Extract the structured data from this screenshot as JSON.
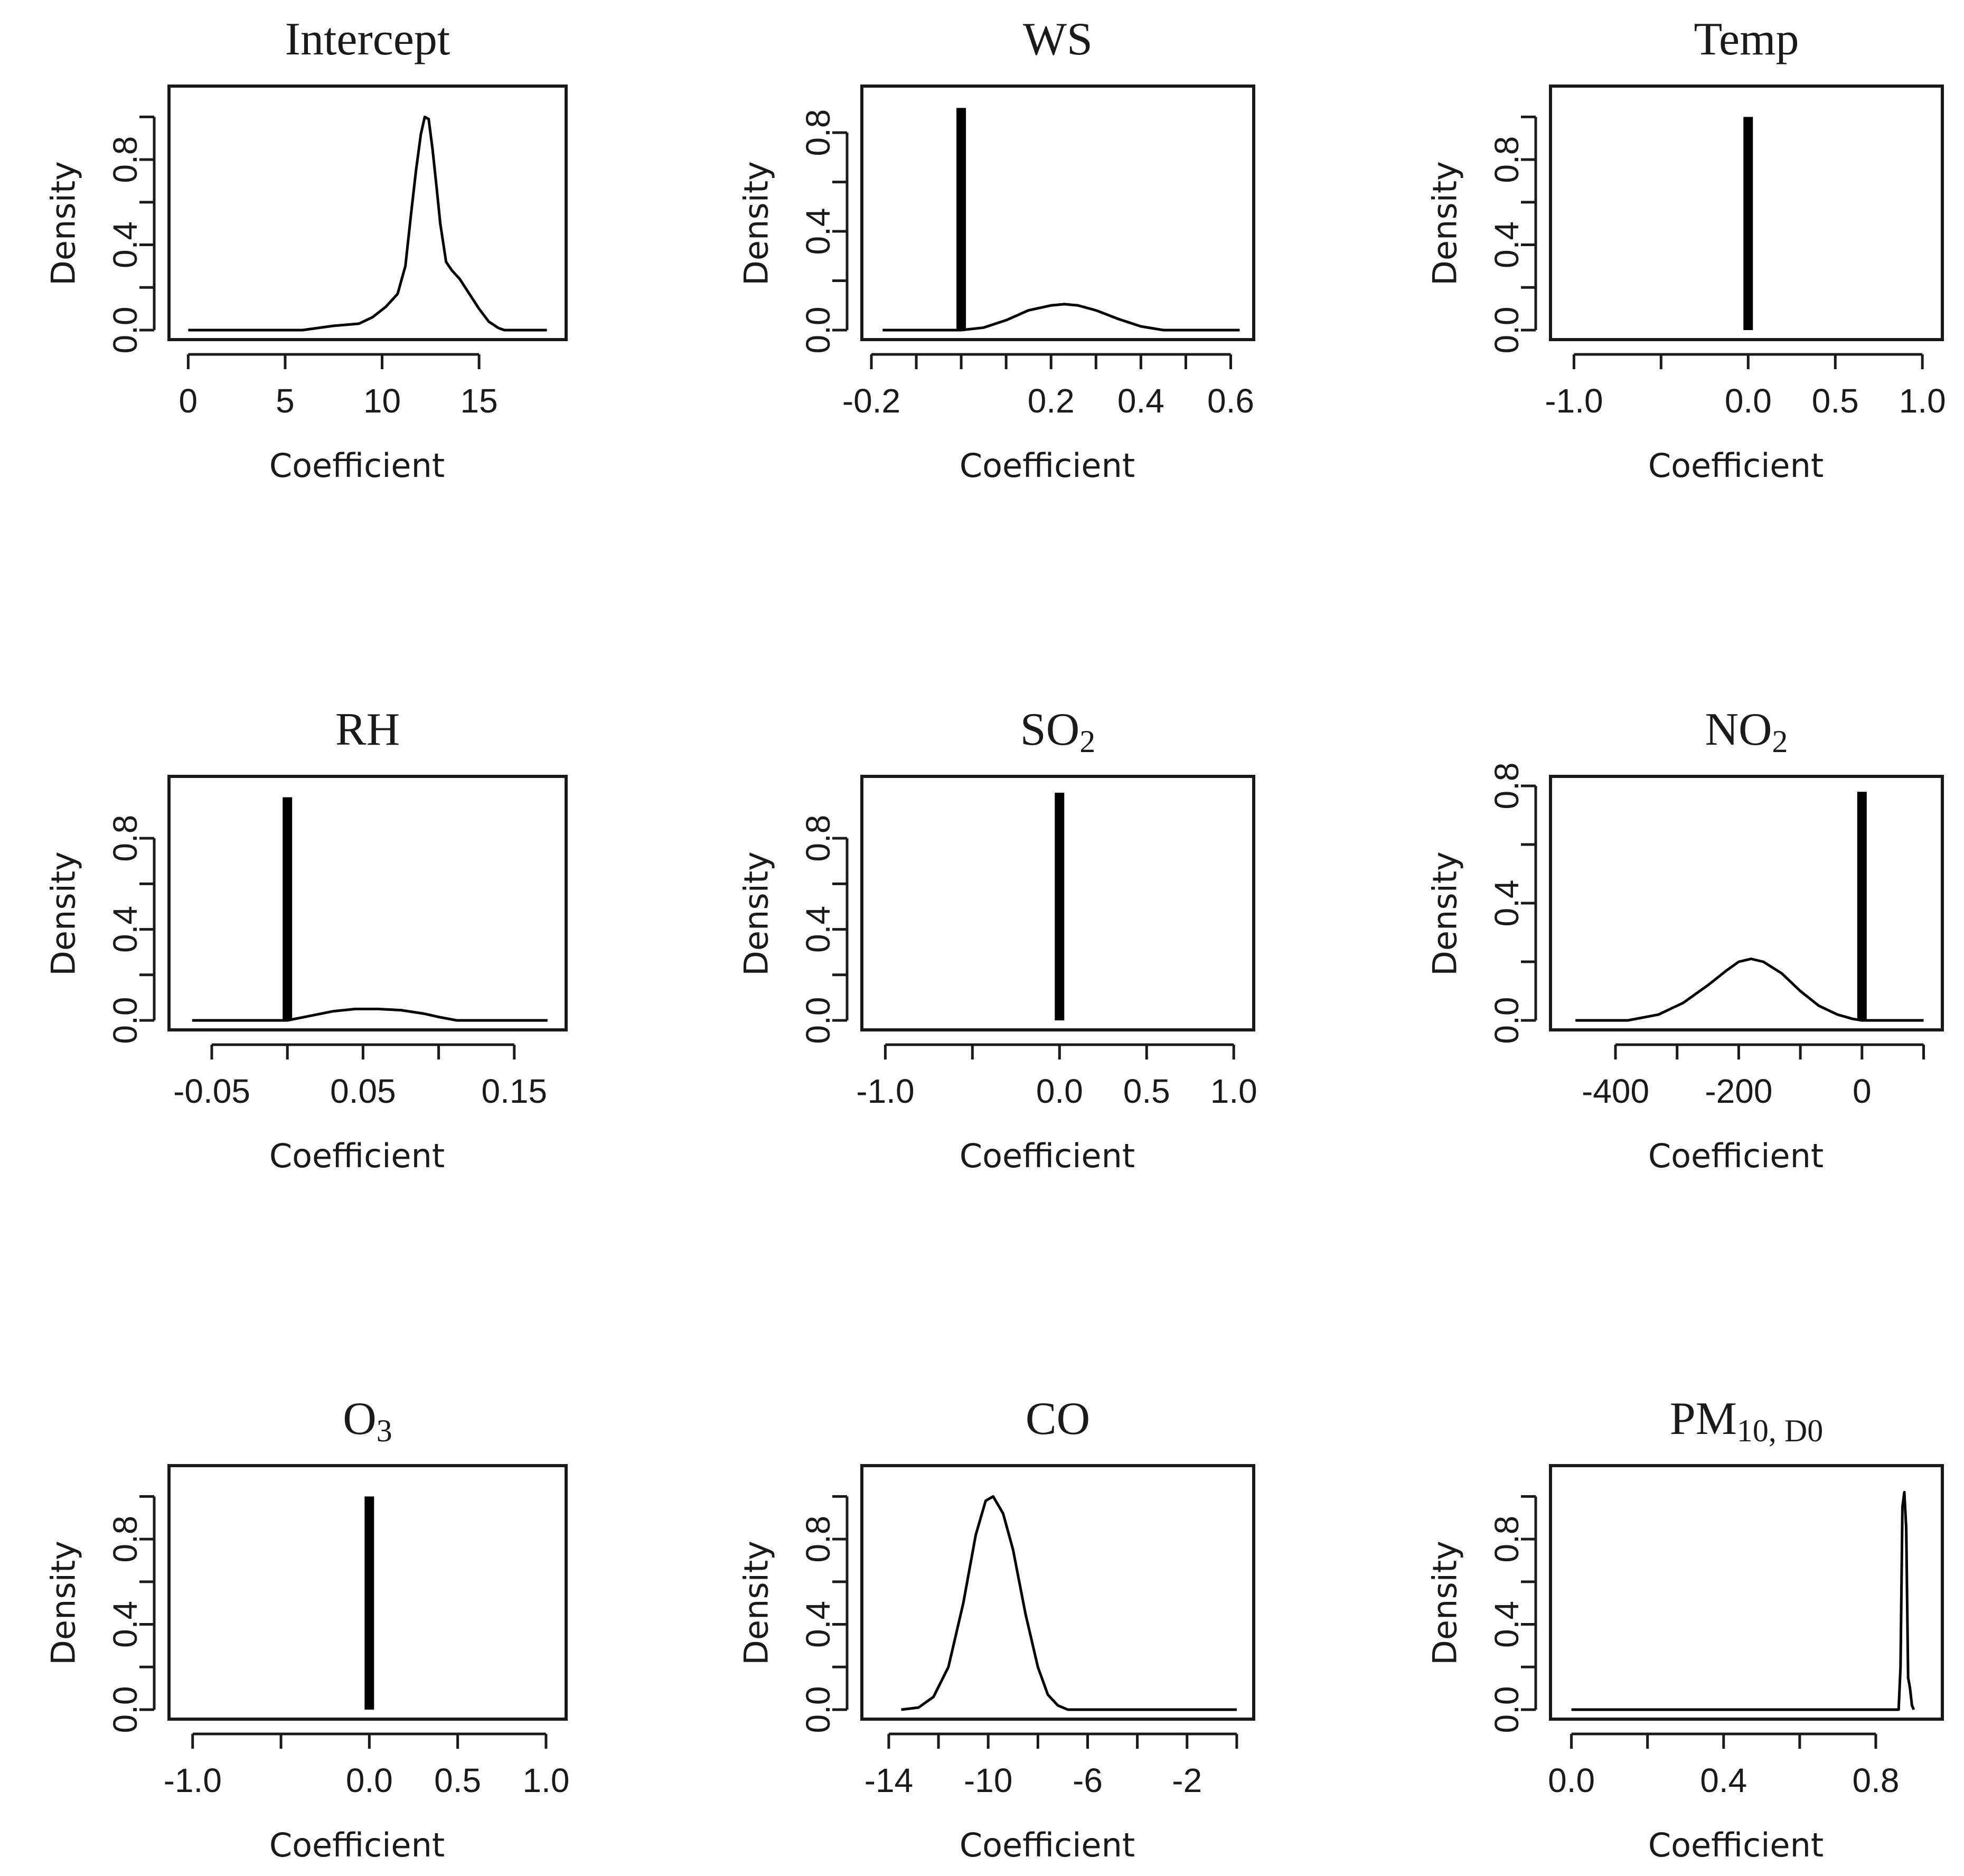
{
  "figure": {
    "xlabel": "Coefficient",
    "ylabel": "Density"
  },
  "chart_data": [
    {
      "type": "line",
      "title": "Intercept",
      "title_sub": "",
      "xlabel": "Coefficient",
      "ylabel": "Density",
      "xlim": [
        -0.5,
        19
      ],
      "ylim": [
        0,
        1.1
      ],
      "xticks": [
        0,
        5,
        10,
        15
      ],
      "xtick_labels": [
        "0",
        "5",
        "10",
        "15"
      ],
      "yticks": [
        0,
        0.2,
        0.4,
        0.6,
        0.8,
        1.0
      ],
      "ytick_labels": [
        "0.0",
        "",
        "0.4",
        "",
        "0.8",
        ""
      ],
      "curve": {
        "x": [
          0,
          5.9,
          7.5,
          8.8,
          9.5,
          10.2,
          10.8,
          11.2,
          11.5,
          11.75,
          12.0,
          12.2,
          12.4,
          12.6,
          12.8,
          13.0,
          13.3,
          13.6,
          14.0,
          14.5,
          15.0,
          15.5,
          16.0,
          16.3,
          18.5
        ],
        "y": [
          0.0,
          0.0,
          0.02,
          0.03,
          0.06,
          0.11,
          0.17,
          0.3,
          0.55,
          0.75,
          0.92,
          1.0,
          0.99,
          0.85,
          0.68,
          0.5,
          0.32,
          0.28,
          0.24,
          0.17,
          0.1,
          0.04,
          0.01,
          0.0,
          0.0
        ]
      },
      "spike": null
    },
    {
      "type": "line",
      "title": "WS",
      "title_sub": "",
      "xlabel": "Coefficient",
      "ylabel": "Density",
      "xlim": [
        -0.2,
        0.63
      ],
      "ylim": [
        0,
        0.95
      ],
      "xticks": [
        -0.2,
        -0.1,
        0.0,
        0.1,
        0.2,
        0.3,
        0.4,
        0.5,
        0.6
      ],
      "xtick_labels": [
        "-0.2",
        "",
        "",
        "",
        "0.2",
        "",
        "0.4",
        "",
        "0.6"
      ],
      "yticks": [
        0,
        0.2,
        0.4,
        0.6,
        0.8
      ],
      "ytick_labels": [
        "0.0",
        "",
        "0.4",
        "",
        "0.8"
      ],
      "curve": {
        "x": [
          -0.175,
          0.0,
          0.05,
          0.1,
          0.15,
          0.2,
          0.23,
          0.26,
          0.3,
          0.35,
          0.4,
          0.45,
          0.62
        ],
        "y": [
          0.0,
          0.0,
          0.01,
          0.04,
          0.08,
          0.1,
          0.105,
          0.1,
          0.08,
          0.045,
          0.015,
          0.0,
          0.0
        ]
      },
      "spike": {
        "x": 0.0,
        "y": 0.9
      }
    },
    {
      "type": "line",
      "title": "Temp",
      "title_sub": "",
      "xlabel": "Coefficient",
      "ylabel": "Density",
      "xlim": [
        -1.08,
        1.06
      ],
      "ylim": [
        0,
        1.1
      ],
      "xticks": [
        -1.0,
        -0.5,
        0.0,
        0.5,
        1.0
      ],
      "xtick_labels": [
        "-1.0",
        "",
        "0.0",
        "0.5",
        "1.0"
      ],
      "yticks": [
        0,
        0.2,
        0.4,
        0.6,
        0.8,
        1.0
      ],
      "ytick_labels": [
        "0.0",
        "",
        "0.4",
        "",
        "0.8",
        ""
      ],
      "curve": null,
      "spike": {
        "x": 0.0,
        "y": 1.0
      }
    },
    {
      "type": "line",
      "title": "RH",
      "title_sub": "",
      "xlabel": "Coefficient",
      "ylabel": "Density",
      "xlim": [
        -0.072,
        0.178
      ],
      "ylim": [
        0,
        1.03
      ],
      "xticks": [
        -0.05,
        0.0,
        0.05,
        0.1,
        0.15
      ],
      "xtick_labels": [
        "-0.05",
        "",
        "0.05",
        "",
        "0.15"
      ],
      "yticks": [
        0,
        0.2,
        0.4,
        0.6,
        0.8
      ],
      "ytick_labels": [
        "0.0",
        "",
        "0.4",
        "",
        "0.8"
      ],
      "curve": {
        "x": [
          -0.063,
          0.0,
          0.015,
          0.03,
          0.045,
          0.06,
          0.075,
          0.09,
          0.1,
          0.112,
          0.172
        ],
        "y": [
          0.0,
          0.0,
          0.02,
          0.04,
          0.05,
          0.05,
          0.045,
          0.03,
          0.015,
          0.0,
          0.0
        ]
      },
      "spike": {
        "x": 0.0,
        "y": 0.98
      }
    },
    {
      "type": "line",
      "title": "SO",
      "title_sub": "2",
      "xlabel": "Coefficient",
      "ylabel": "Density",
      "xlim": [
        -1.08,
        1.06
      ],
      "ylim": [
        0,
        1.03
      ],
      "xticks": [
        -1.0,
        -0.5,
        0.0,
        0.5,
        1.0
      ],
      "xtick_labels": [
        "-1.0",
        "",
        "0.0",
        "0.5",
        "1.0"
      ],
      "yticks": [
        0,
        0.2,
        0.4,
        0.6,
        0.8
      ],
      "ytick_labels": [
        "0.0",
        "",
        "0.4",
        "",
        "0.8"
      ],
      "curve": null,
      "spike": {
        "x": 0.0,
        "y": 1.0
      }
    },
    {
      "type": "line",
      "title": "NO",
      "title_sub": "2",
      "xlabel": "Coefficient",
      "ylabel": "Density",
      "xlim": [
        -490,
        115
      ],
      "ylim": [
        0,
        0.8
      ],
      "xticks": [
        -400,
        -300,
        -200,
        -100,
        0,
        100
      ],
      "xtick_labels": [
        "-400",
        "",
        "-200",
        "",
        "0",
        ""
      ],
      "yticks": [
        0,
        0.2,
        0.4,
        0.6,
        0.8
      ],
      "ytick_labels": [
        "0.0",
        "",
        "0.4",
        "",
        "0.8"
      ],
      "curve": {
        "x": [
          -465,
          -380,
          -330,
          -290,
          -250,
          -220,
          -200,
          -180,
          -160,
          -130,
          -100,
          -70,
          -40,
          -15,
          0,
          100
        ],
        "y": [
          0.0,
          0.0,
          0.02,
          0.06,
          0.12,
          0.17,
          0.2,
          0.21,
          0.2,
          0.16,
          0.1,
          0.05,
          0.02,
          0.005,
          0.0,
          0.0
        ]
      },
      "spike": {
        "x": 0.0,
        "y": 0.78
      }
    },
    {
      "type": "line",
      "title": "O",
      "title_sub": "3",
      "xlabel": "Coefficient",
      "ylabel": "Density",
      "xlim": [
        -1.08,
        1.06
      ],
      "ylim": [
        0,
        1.1
      ],
      "xticks": [
        -1.0,
        -0.5,
        0.0,
        0.5,
        1.0
      ],
      "xtick_labels": [
        "-1.0",
        "",
        "0.0",
        "0.5",
        "1.0"
      ],
      "yticks": [
        0,
        0.2,
        0.4,
        0.6,
        0.8,
        1.0
      ],
      "ytick_labels": [
        "0.0",
        "",
        "0.4",
        "",
        "0.8",
        ""
      ],
      "curve": null,
      "spike": {
        "x": 0.0,
        "y": 1.0
      }
    },
    {
      "type": "line",
      "title": "CO",
      "title_sub": "",
      "xlabel": "Coefficient",
      "ylabel": "Density",
      "xlim": [
        -14.7,
        0.3
      ],
      "ylim": [
        0,
        1.1
      ],
      "xticks": [
        -14,
        -12,
        -10,
        -8,
        -6,
        -4,
        -2,
        0
      ],
      "xtick_labels": [
        "-14",
        "",
        "-10",
        "",
        "-6",
        "",
        "-2",
        ""
      ],
      "yticks": [
        0,
        0.2,
        0.4,
        0.6,
        0.8,
        1.0
      ],
      "ytick_labels": [
        "0.0",
        "",
        "0.4",
        "",
        "0.8",
        ""
      ],
      "curve": {
        "x": [
          -13.5,
          -12.8,
          -12.2,
          -11.6,
          -11.0,
          -10.5,
          -10.1,
          -9.8,
          -9.4,
          -9.0,
          -8.5,
          -8.0,
          -7.6,
          -7.2,
          -6.8,
          0.0
        ],
        "y": [
          0.0,
          0.01,
          0.06,
          0.2,
          0.5,
          0.82,
          0.98,
          1.0,
          0.92,
          0.75,
          0.45,
          0.2,
          0.07,
          0.02,
          0.0,
          0.0
        ]
      },
      "spike": null
    },
    {
      "type": "line",
      "title": "PM",
      "title_sub": "10, D0",
      "xlabel": "Coefficient",
      "ylabel": "Density",
      "xlim": [
        -0.03,
        0.95
      ],
      "ylim": [
        0,
        1.1
      ],
      "xticks": [
        0.0,
        0.2,
        0.4,
        0.6,
        0.8
      ],
      "xtick_labels": [
        "0.0",
        "",
        "0.4",
        "",
        "0.8"
      ],
      "yticks": [
        0,
        0.2,
        0.4,
        0.6,
        0.8,
        1.0
      ],
      "ytick_labels": [
        "0.0",
        "",
        "0.4",
        "",
        "0.8",
        ""
      ],
      "curve": {
        "x": [
          0.0,
          0.86,
          0.865,
          0.87,
          0.875,
          0.88,
          0.885,
          0.89,
          0.895,
          0.9
        ],
        "y": [
          0.0,
          0.0,
          0.2,
          0.95,
          1.02,
          0.85,
          0.15,
          0.1,
          0.02,
          0.0
        ]
      },
      "spike": null
    }
  ]
}
